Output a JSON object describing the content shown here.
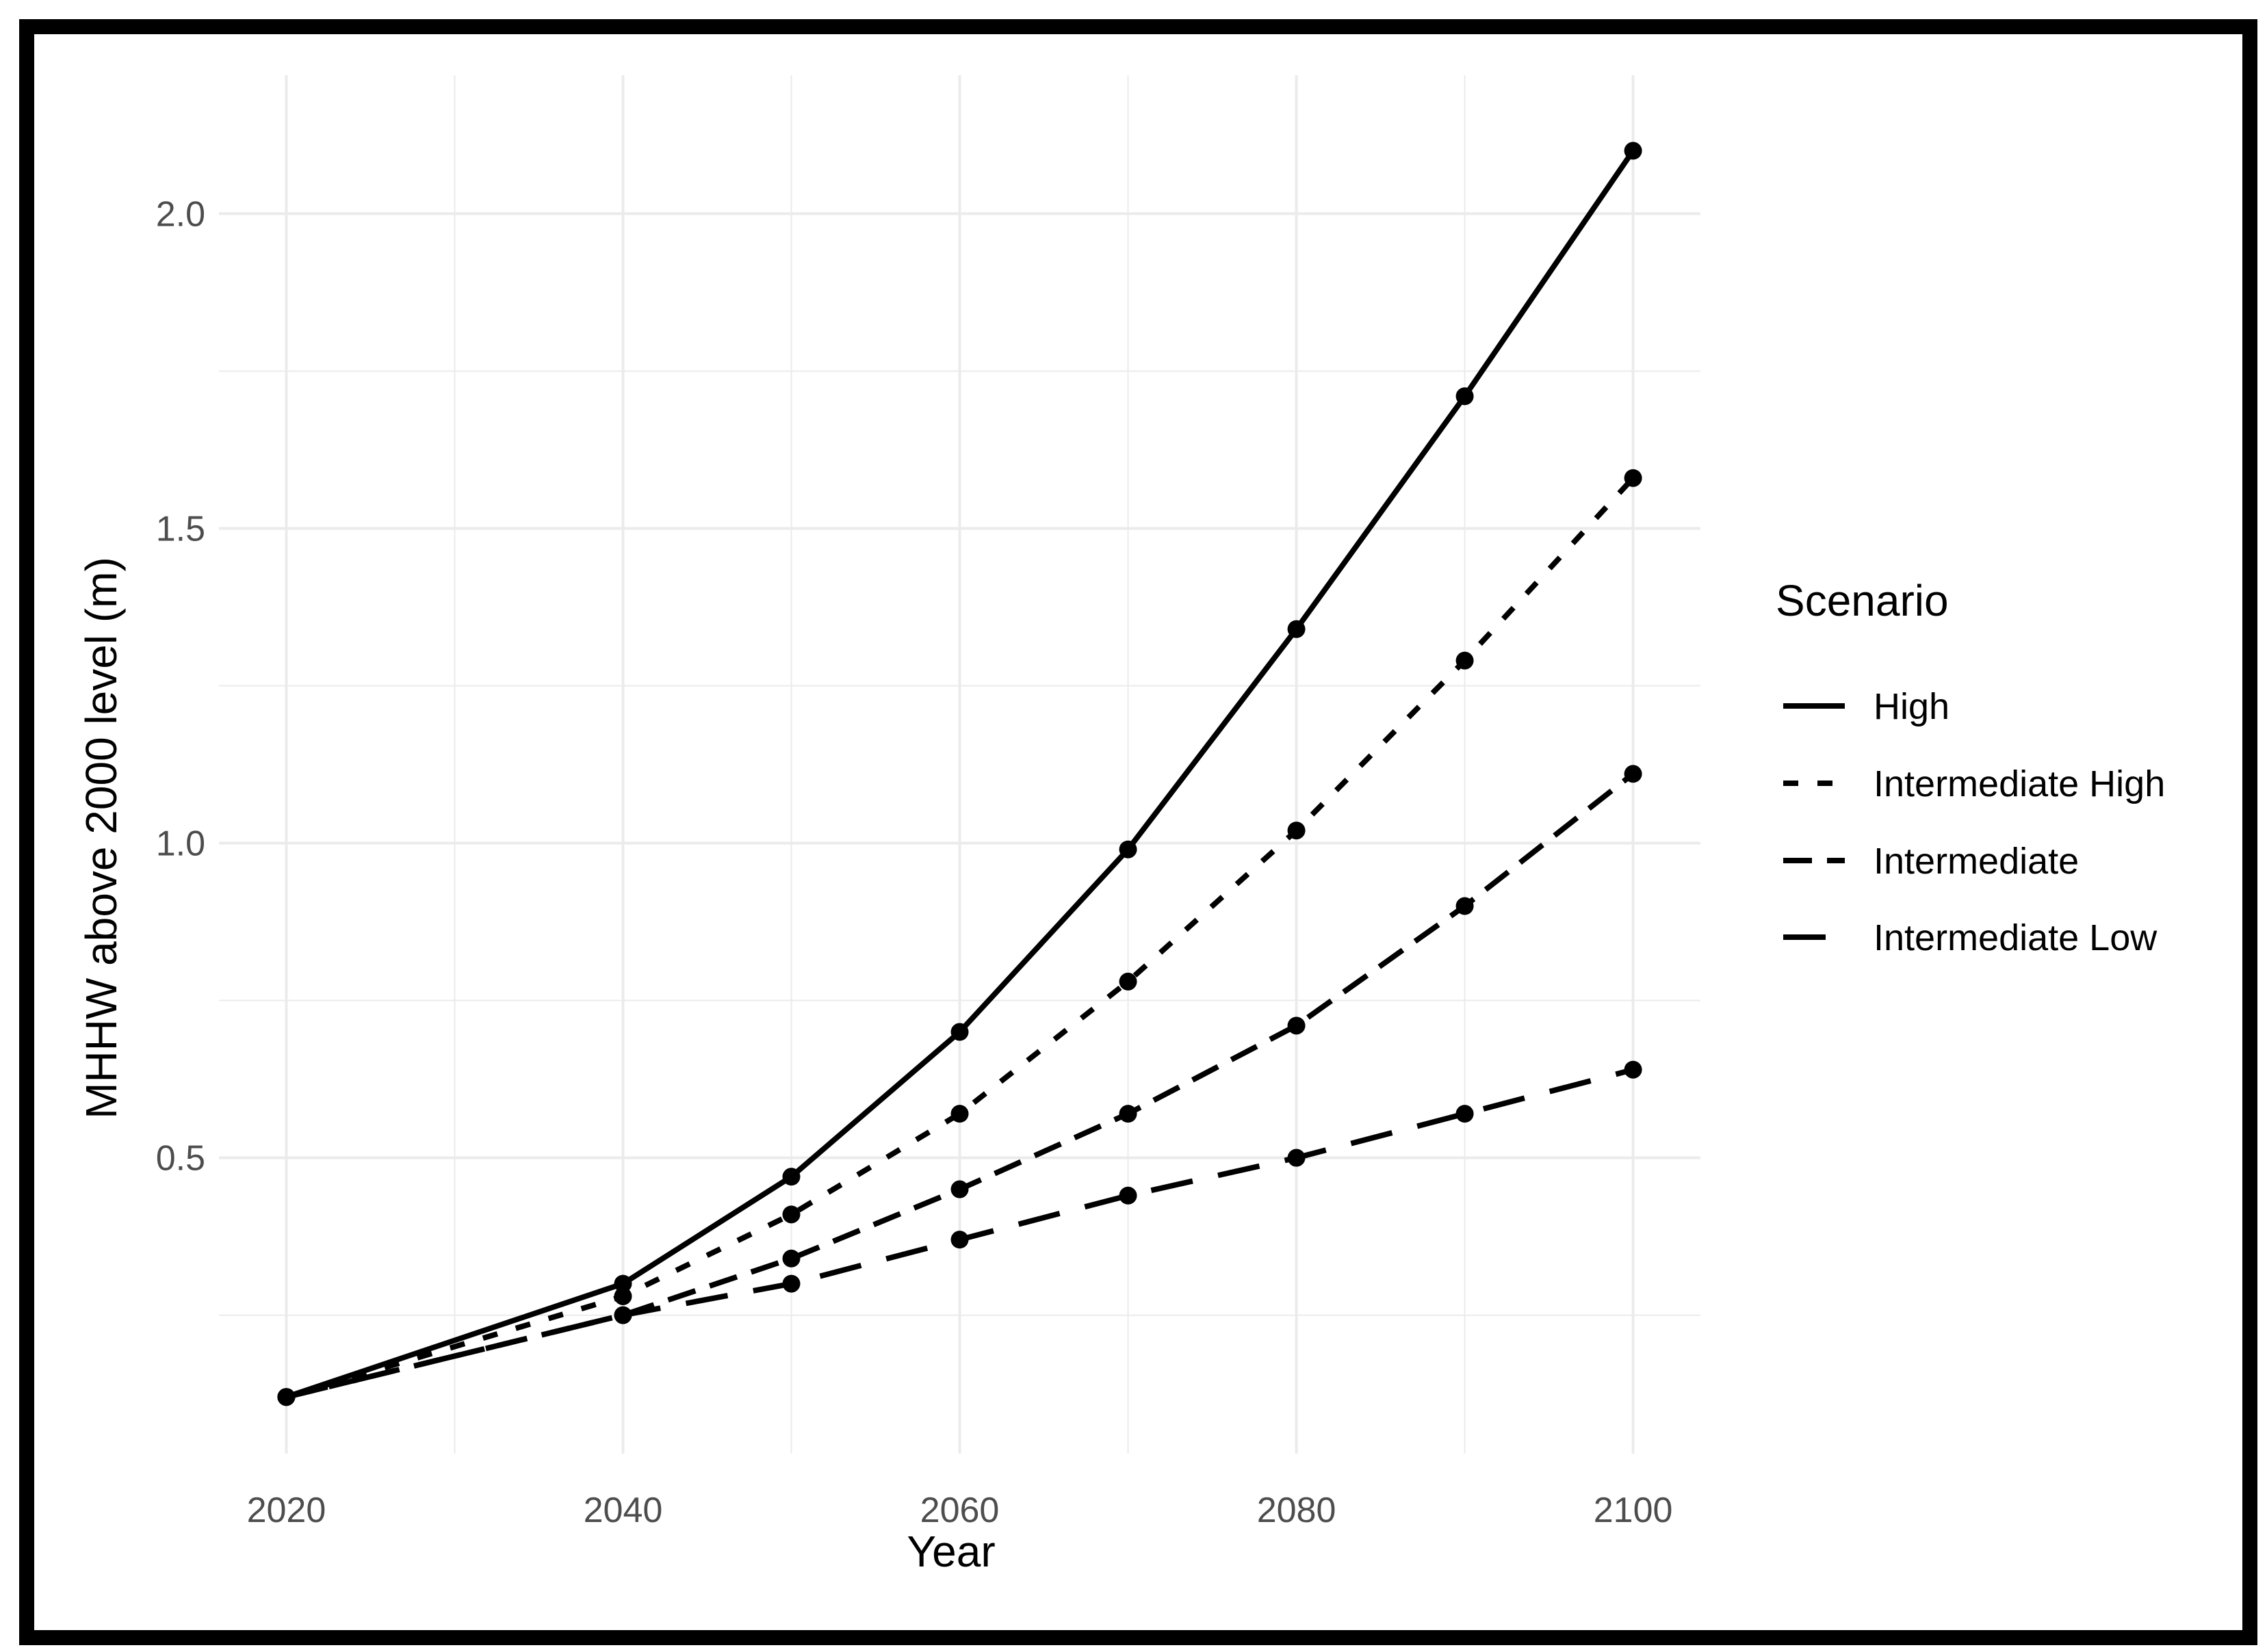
{
  "chart_data": {
    "type": "line",
    "xlabel": "Year",
    "ylabel": "MHHW above 2000 level (m)",
    "xlim": [
      2016,
      2104
    ],
    "ylim": [
      0.03,
      2.22
    ],
    "x_ticks": [
      2020,
      2040,
      2060,
      2080,
      2100
    ],
    "y_ticks": [
      0.5,
      1.0,
      1.5,
      2.0
    ],
    "x_tick_labels": [
      "2020",
      "2040",
      "2060",
      "2080",
      "2100"
    ],
    "y_tick_labels": [
      "0.5",
      "1.0",
      "1.5",
      "2.0"
    ],
    "x_minor": [
      2030,
      2050,
      2070,
      2090
    ],
    "y_minor": [
      0.25,
      0.75,
      1.25,
      1.75
    ],
    "grid": true,
    "legend": {
      "title": "Scenario",
      "position": "right"
    },
    "line_color": "#000000",
    "grid_color": "#ebebeb",
    "x": [
      2020,
      2040,
      2050,
      2060,
      2070,
      2080,
      2090,
      2100
    ],
    "series": [
      {
        "name": "High",
        "dash": "solid",
        "values": [
          0.12,
          0.3,
          0.47,
          0.7,
          0.99,
          1.34,
          1.71,
          2.1
        ]
      },
      {
        "name": "Intermediate High",
        "dash": "dotted",
        "values": [
          0.12,
          0.28,
          0.41,
          0.57,
          0.78,
          1.02,
          1.29,
          1.58
        ]
      },
      {
        "name": "Intermediate",
        "dash": "dashed",
        "values": [
          0.12,
          0.25,
          0.34,
          0.45,
          0.57,
          0.71,
          0.9,
          1.11
        ]
      },
      {
        "name": "Intermediate Low",
        "dash": "longdash",
        "values": [
          0.12,
          0.25,
          0.3,
          0.37,
          0.44,
          0.5,
          0.57,
          0.64
        ]
      }
    ]
  }
}
